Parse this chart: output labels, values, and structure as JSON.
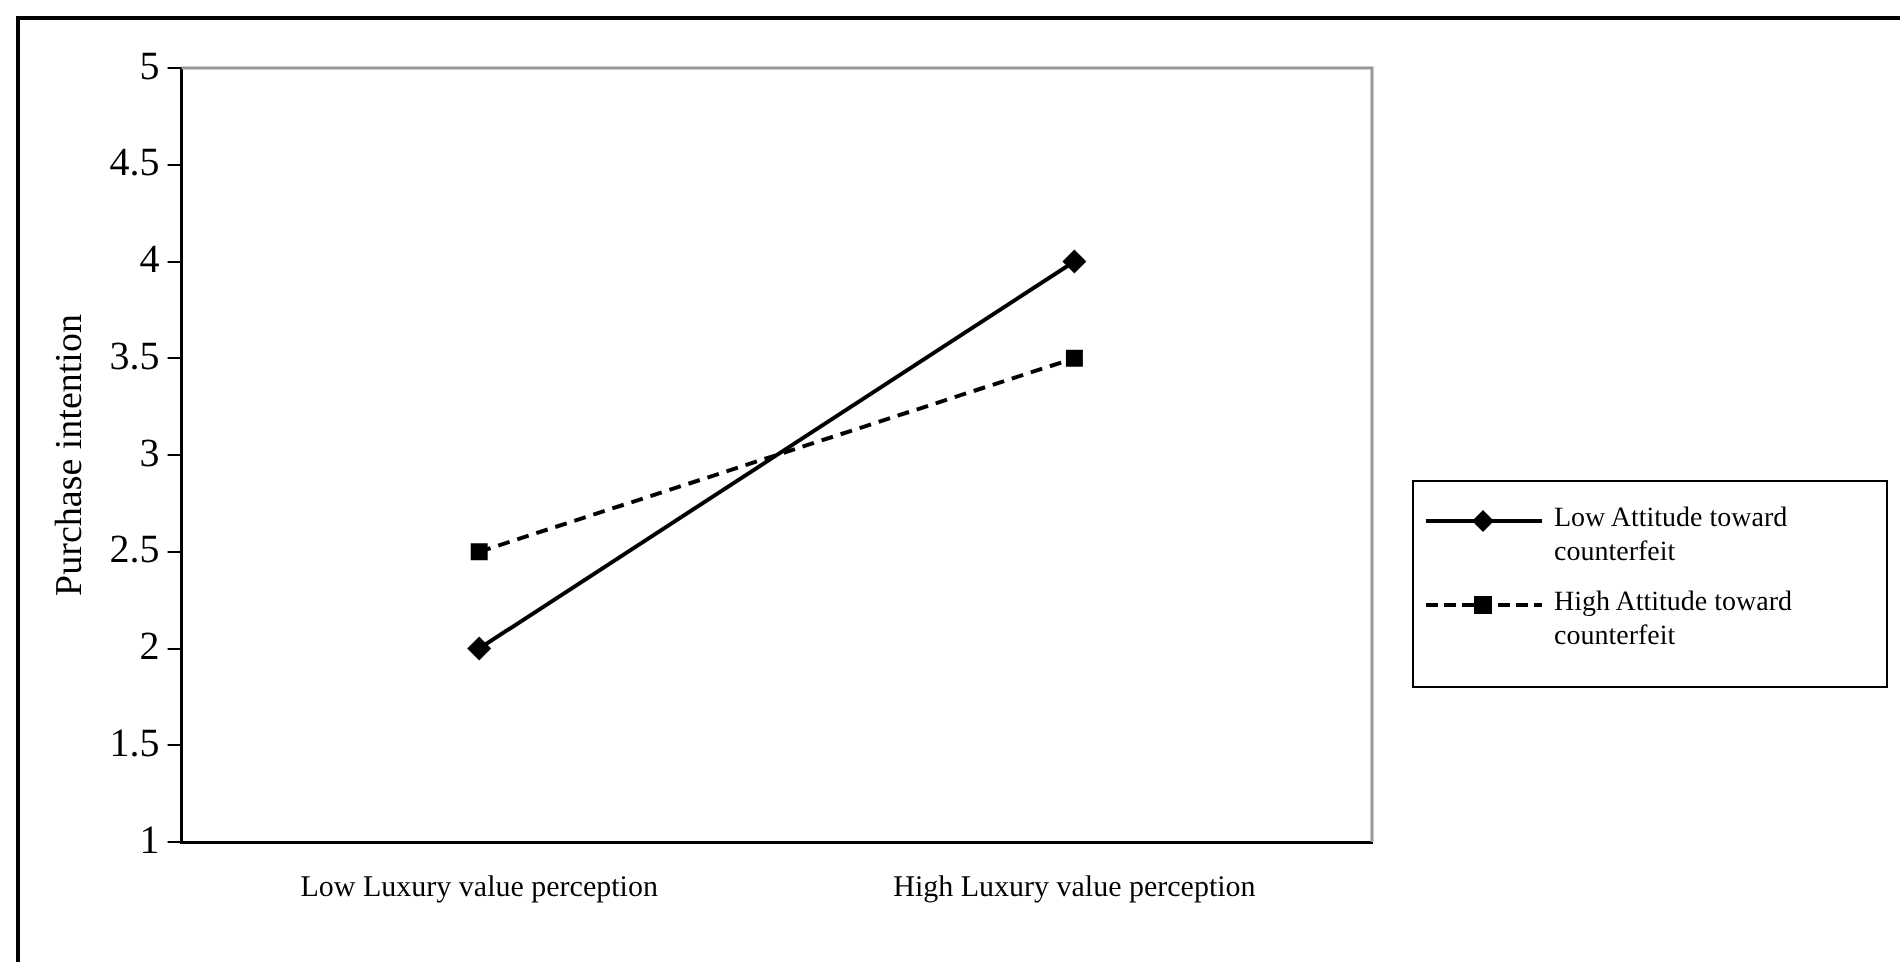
{
  "chart_data": {
    "type": "line",
    "ylabel": "Purchase intention",
    "categories": [
      "Low Luxury value perception",
      "High Luxury value perception"
    ],
    "series": [
      {
        "name": "Low Attitude toward counterfeit",
        "color": "#000000",
        "values": [
          2,
          4
        ],
        "marker": "diamond",
        "line_style": "solid"
      },
      {
        "name": "High Attitude toward counterfeit",
        "color": "#000000",
        "values": [
          2.5,
          3.5
        ],
        "marker": "square",
        "line_style": "dashed"
      }
    ],
    "ylim": [
      1,
      5
    ],
    "yticks": [
      1,
      1.5,
      2,
      2.5,
      3,
      3.5,
      4,
      4.5,
      5
    ],
    "grid": false,
    "legend": "right"
  }
}
